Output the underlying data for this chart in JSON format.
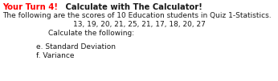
{
  "line1_red": "Your Turn 4!",
  "line1_black": " Calculate with The Calculator!",
  "line2": "The following are the scores of 10 Education students in Quiz 1-Statistics.",
  "line3": "13, 19, 20, 21, 25, 21, 17, 18, 20, 27",
  "line4": "Calculate the following:",
  "line5": "e. Standard Deviation",
  "line6": "f. Variance",
  "bg_color": "#ffffff",
  "red_color": "#ff0000",
  "black_color": "#1a1a1a",
  "font_size_title": 7.2,
  "font_size_body": 6.5,
  "fig_width": 3.46,
  "fig_height": 1.01,
  "dpi": 100
}
